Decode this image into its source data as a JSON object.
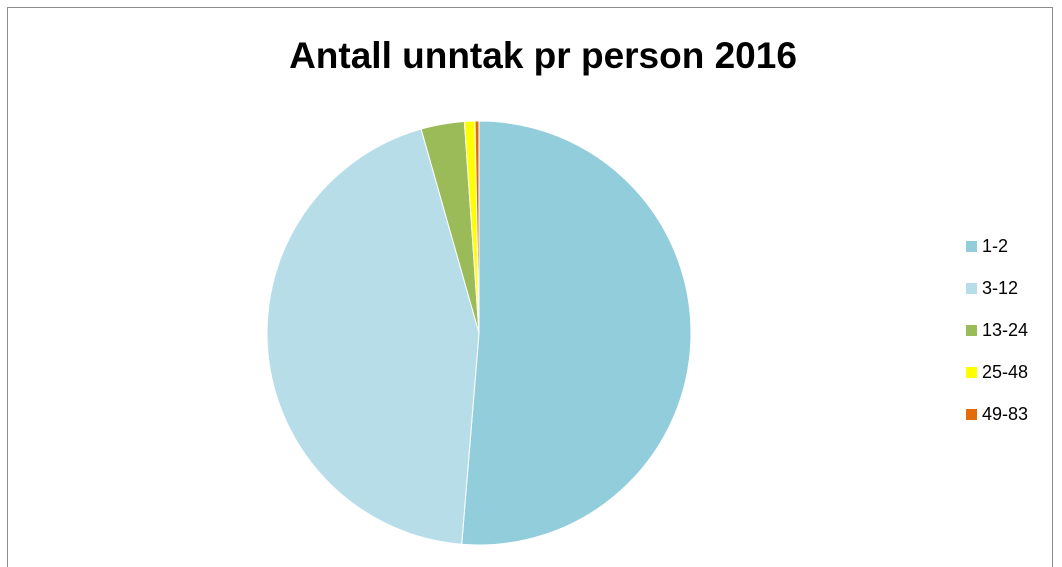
{
  "chart_data": {
    "type": "pie",
    "title": "Antall unntak pr person 2016",
    "categories": [
      "1-2",
      "3-12",
      "13-24",
      "25-48",
      "49-83"
    ],
    "values": [
      51.3,
      44.3,
      3.3,
      0.8,
      0.3
    ],
    "colors": [
      "#92cddc",
      "#b7dee8",
      "#9bbb59",
      "#ffff00",
      "#e36c09"
    ],
    "legend_position": "right"
  }
}
